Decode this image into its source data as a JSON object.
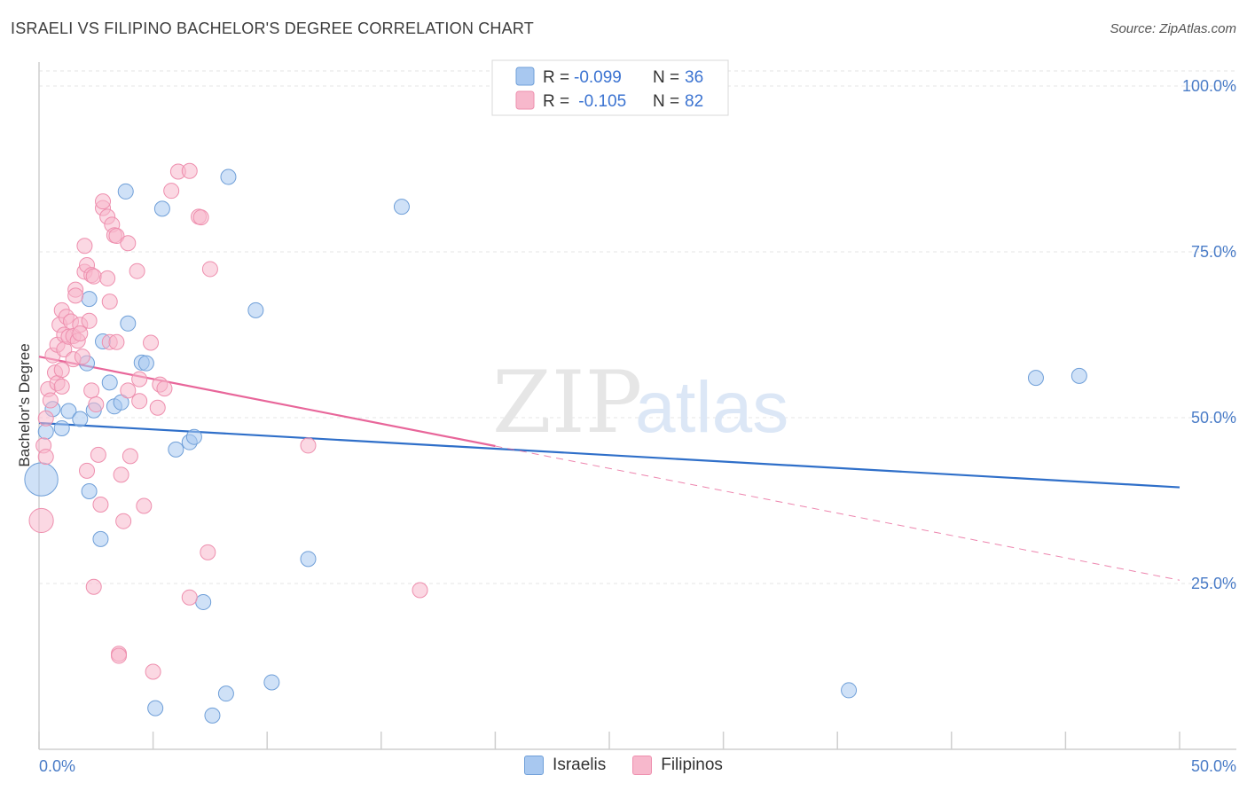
{
  "title": "ISRAELI VS FILIPINO BACHELOR'S DEGREE CORRELATION CHART",
  "source": "Source: ZipAtlas.com",
  "watermark": {
    "zip": "ZIP",
    "atlas": "atlas"
  },
  "chart_data": {
    "type": "scatter",
    "title": "ISRAELI VS FILIPINO BACHELOR'S DEGREE CORRELATION CHART",
    "ylabel": "Bachelor's Degree",
    "xlabel": "",
    "xlim": [
      0,
      50
    ],
    "ylim": [
      0,
      105
    ],
    "y_ticks": [
      {
        "value": 100,
        "label": "100.0%"
      },
      {
        "value": 75,
        "label": "75.0%"
      },
      {
        "value": 50,
        "label": "50.0%"
      },
      {
        "value": 25,
        "label": "25.0%"
      }
    ],
    "x_tick_labels": {
      "min": "0.0%",
      "max": "50.0%"
    },
    "legend_box": [
      {
        "r_label": "R = ",
        "r_value": "-0.099",
        "n_label": "N = ",
        "n_value": "36"
      },
      {
        "r_label": "R = ",
        "r_value": " -0.105",
        "n_label": "N = ",
        "n_value": "82"
      }
    ],
    "series": [
      {
        "name": "Israelis",
        "color": "#a8c8f0",
        "stroke": "#6f9fd8",
        "line_color": "#2f6fc9",
        "trend": {
          "x0": 0,
          "y0": 49.2,
          "x1": 50,
          "y1": 39.5,
          "solid_to": 50
        },
        "points": [
          [
            0.1,
            40.7,
            2.2
          ],
          [
            0.3,
            47.9,
            1
          ],
          [
            0.6,
            51.3,
            1
          ],
          [
            1.0,
            48.4,
            1
          ],
          [
            1.3,
            51.0,
            1
          ],
          [
            1.8,
            49.8,
            1
          ],
          [
            2.1,
            58.2,
            1
          ],
          [
            2.2,
            38.9,
            1
          ],
          [
            2.2,
            67.9,
            1
          ],
          [
            2.4,
            51.1,
            1
          ],
          [
            2.7,
            31.7,
            1
          ],
          [
            2.8,
            61.5,
            1
          ],
          [
            3.1,
            55.3,
            1
          ],
          [
            3.3,
            51.7,
            1
          ],
          [
            3.6,
            52.3,
            1
          ],
          [
            3.8,
            84.1,
            1
          ],
          [
            3.9,
            64.2,
            1
          ],
          [
            4.5,
            58.3,
            1
          ],
          [
            4.7,
            58.2,
            1
          ],
          [
            5.1,
            6.2,
            1
          ],
          [
            5.4,
            81.5,
            1
          ],
          [
            6.0,
            45.2,
            1
          ],
          [
            6.6,
            46.3,
            1
          ],
          [
            6.8,
            47.1,
            1
          ],
          [
            7.2,
            22.2,
            1
          ],
          [
            7.6,
            5.1,
            1
          ],
          [
            8.2,
            8.4,
            1
          ],
          [
            8.3,
            86.3,
            1
          ],
          [
            9.5,
            66.2,
            1
          ],
          [
            10.2,
            10.1,
            1
          ],
          [
            11.8,
            28.7,
            1
          ],
          [
            15.9,
            81.8,
            1
          ],
          [
            35.5,
            8.9,
            1
          ],
          [
            43.7,
            56.0,
            1
          ],
          [
            45.6,
            56.3,
            1
          ]
        ]
      },
      {
        "name": "Filipinos",
        "color": "#f7b8cc",
        "stroke": "#ee8fae",
        "line_color": "#e8669a",
        "trend": {
          "x0": 0,
          "y0": 59.2,
          "x1": 50,
          "y1": 25.5,
          "solid_to": 20
        },
        "points": [
          [
            0.1,
            34.5,
            1.6
          ],
          [
            0.2,
            45.8,
            1
          ],
          [
            0.3,
            44.1,
            1
          ],
          [
            0.3,
            49.9,
            1
          ],
          [
            0.4,
            54.3,
            1
          ],
          [
            0.5,
            52.6,
            1
          ],
          [
            0.6,
            59.4,
            1
          ],
          [
            0.7,
            56.8,
            1
          ],
          [
            0.8,
            61.0,
            1
          ],
          [
            0.8,
            55.2,
            1
          ],
          [
            0.9,
            64.0,
            1
          ],
          [
            1.0,
            57.2,
            1
          ],
          [
            1.0,
            54.7,
            1
          ],
          [
            1.0,
            66.2,
            1
          ],
          [
            1.1,
            62.5,
            1
          ],
          [
            1.1,
            60.3,
            1
          ],
          [
            1.2,
            65.2,
            1
          ],
          [
            1.3,
            62.2,
            1
          ],
          [
            1.4,
            64.5,
            1
          ],
          [
            1.5,
            62.3,
            1
          ],
          [
            1.5,
            58.8,
            1
          ],
          [
            1.6,
            69.3,
            1
          ],
          [
            1.6,
            68.4,
            1
          ],
          [
            1.7,
            61.6,
            1
          ],
          [
            1.8,
            64.0,
            1
          ],
          [
            1.8,
            62.7,
            1
          ],
          [
            1.9,
            59.2,
            1
          ],
          [
            2.0,
            72.0,
            1
          ],
          [
            2.0,
            75.9,
            1
          ],
          [
            2.1,
            73.0,
            1
          ],
          [
            2.1,
            42.0,
            1
          ],
          [
            2.2,
            64.6,
            1
          ],
          [
            2.3,
            71.5,
            1
          ],
          [
            2.3,
            54.1,
            1
          ],
          [
            2.4,
            71.3,
            1
          ],
          [
            2.4,
            24.5,
            1
          ],
          [
            2.5,
            52.0,
            1
          ],
          [
            2.6,
            44.4,
            1
          ],
          [
            2.7,
            36.9,
            1
          ],
          [
            2.8,
            81.6,
            1
          ],
          [
            2.8,
            82.6,
            1
          ],
          [
            3.0,
            80.3,
            1
          ],
          [
            3.0,
            71.0,
            1
          ],
          [
            3.1,
            61.4,
            1
          ],
          [
            3.1,
            67.5,
            1
          ],
          [
            3.2,
            79.1,
            1
          ],
          [
            3.3,
            77.5,
            1
          ],
          [
            3.4,
            77.4,
            1
          ],
          [
            3.4,
            61.4,
            1
          ],
          [
            3.5,
            14.4,
            1
          ],
          [
            3.5,
            14.1,
            1
          ],
          [
            3.6,
            41.4,
            1
          ],
          [
            3.7,
            34.4,
            1
          ],
          [
            3.9,
            54.1,
            1
          ],
          [
            3.9,
            76.3,
            1
          ],
          [
            4.0,
            44.2,
            1
          ],
          [
            4.3,
            72.1,
            1
          ],
          [
            4.4,
            52.5,
            1
          ],
          [
            4.4,
            55.8,
            1
          ],
          [
            4.6,
            36.7,
            1
          ],
          [
            4.9,
            61.3,
            1
          ],
          [
            5.0,
            11.7,
            1
          ],
          [
            5.2,
            51.5,
            1
          ],
          [
            5.3,
            55.0,
            1
          ],
          [
            5.5,
            54.4,
            1
          ],
          [
            5.8,
            84.2,
            1
          ],
          [
            6.1,
            87.1,
            1
          ],
          [
            6.6,
            87.2,
            1
          ],
          [
            6.6,
            22.9,
            1
          ],
          [
            7.0,
            80.3,
            1
          ],
          [
            7.1,
            80.2,
            1
          ],
          [
            7.4,
            29.7,
            1
          ],
          [
            7.5,
            72.4,
            1
          ],
          [
            11.8,
            45.8,
            1
          ],
          [
            16.7,
            24.0,
            1
          ]
        ]
      }
    ]
  }
}
